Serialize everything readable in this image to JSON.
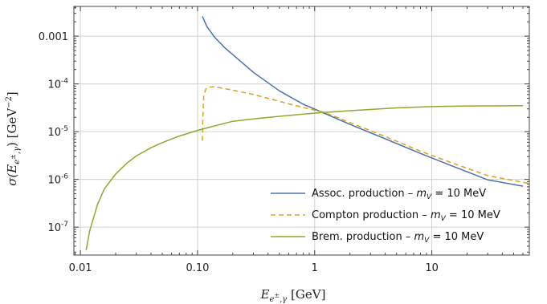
{
  "chart_data": {
    "type": "line",
    "xscale": "log",
    "yscale": "log",
    "xlim": [
      0.0088,
      68
    ],
    "ylim": [
      2.6e-08,
      0.0042
    ],
    "grid": true,
    "legend_position": "bottom-right",
    "xlabel_parts": {
      "main": "E",
      "sub": "e",
      "subsup": "±",
      "subrest": ",γ",
      "unit": " [GeV]"
    },
    "ylabel_parts": {
      "prefix": "σ(",
      "main": "E",
      "sub": "e",
      "subsup": "±",
      "subrest": ",γ",
      "suffix": ") [GeV",
      "unit_exp": "−2",
      "close": "]"
    },
    "x_ticks": [
      {
        "value": 0.01,
        "label": "0.01"
      },
      {
        "value": 0.1,
        "label": "0.10"
      },
      {
        "value": 1,
        "label": "1"
      },
      {
        "value": 10,
        "label": "10"
      }
    ],
    "y_ticks": [
      {
        "value": 0.001,
        "plain": "0.001"
      },
      {
        "value": 0.0001,
        "base": "10",
        "exp": "-4"
      },
      {
        "value": 1e-05,
        "base": "10",
        "exp": "-5"
      },
      {
        "value": 1e-06,
        "base": "10",
        "exp": "-6"
      },
      {
        "value": 1e-07,
        "base": "10",
        "exp": "-7"
      }
    ],
    "series": [
      {
        "name": "Assoc. production",
        "legend": {
          "label": "Assoc. production",
          "mass_text": "= 10 MeV"
        },
        "color": "#4a72b0",
        "dash": "none",
        "x": [
          0.11,
          0.12,
          0.14,
          0.17,
          0.2,
          0.3,
          0.5,
          0.8,
          1.2,
          2,
          4,
          8,
          15,
          30,
          60
        ],
        "y": [
          0.0026,
          0.0016,
          0.00095,
          0.00058,
          0.00041,
          0.000175,
          7.15e-05,
          3.75e-05,
          2.45e-05,
          1.42e-05,
          7.1e-06,
          3.5e-06,
          1.9e-06,
          9.8e-07,
          7.2e-07
        ]
      },
      {
        "name": "Compton production",
        "legend": {
          "label": "Compton production ",
          "mass_text": "= 10 MeV"
        },
        "color": "#e0a020",
        "dash": "6,4",
        "x": [
          0.11,
          0.111,
          0.113,
          0.118,
          0.125,
          0.135,
          0.16,
          0.2,
          0.3,
          0.5,
          0.8,
          1.2,
          2,
          4,
          8,
          15,
          30,
          68
        ],
        "y": [
          6.5e-06,
          1.9e-05,
          5.8e-05,
          7.9e-05,
          8.6e-05,
          8.7e-05,
          8.2e-05,
          7.4e-05,
          6e-05,
          4.3e-05,
          3.2e-05,
          2.55e-05,
          1.55e-05,
          7.9e-06,
          3.9e-06,
          2.2e-06,
          1.2e-06,
          8.2e-07
        ]
      },
      {
        "name": "Brem. production",
        "legend": {
          "label": "Brem. production ",
          "mass_text": "= 10 MeV"
        },
        "color": "#8aab2e",
        "dash": "none",
        "x": [
          0.0112,
          0.012,
          0.014,
          0.016,
          0.02,
          0.025,
          0.03,
          0.04,
          0.05,
          0.07,
          0.1,
          0.15,
          0.2,
          0.3,
          0.5,
          1,
          2,
          5,
          10,
          20,
          60
        ],
        "y": [
          3.3e-08,
          8.3e-08,
          3e-07,
          6.3e-07,
          1.3e-06,
          2.2e-06,
          3.1e-06,
          4.6e-06,
          5.9e-06,
          8.1e-06,
          1.06e-05,
          1.38e-05,
          1.65e-05,
          1.85e-05,
          2.1e-05,
          2.45e-05,
          2.75e-05,
          3.15e-05,
          3.35e-05,
          3.45e-05,
          3.5e-05
        ]
      }
    ],
    "legend_mass_symbol": "m",
    "legend_mass_sub": "V",
    "legend_dash_sep": "–"
  }
}
